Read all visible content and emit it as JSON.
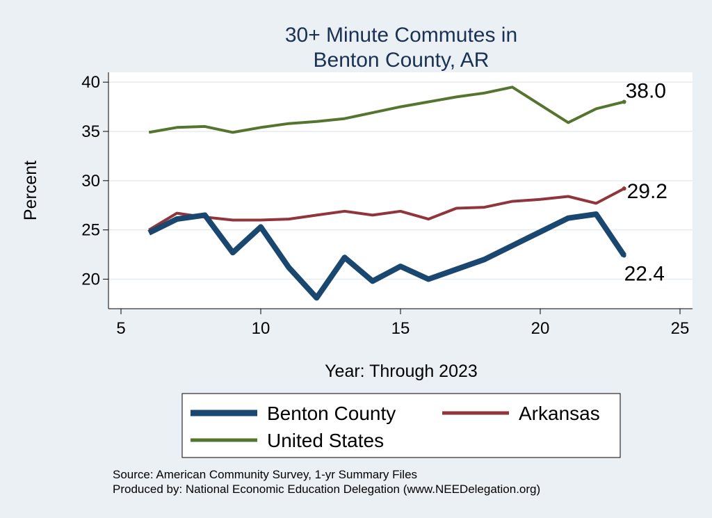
{
  "chart_data": {
    "type": "line",
    "title": [
      "30+ Minute Commutes in",
      "Benton County, AR"
    ],
    "xlabel": "Year: Through 2023",
    "ylabel": "Percent",
    "xlim": [
      5,
      25
    ],
    "ylim": [
      17,
      41
    ],
    "xticks": [
      5,
      10,
      15,
      20,
      25
    ],
    "yticks": [
      20,
      25,
      30,
      35,
      40
    ],
    "grid": true,
    "series": [
      {
        "name": "Benton County",
        "color": "#1a476f",
        "x": [
          6,
          7,
          8,
          9,
          10,
          11,
          12,
          13,
          14,
          15,
          16,
          17,
          18,
          19,
          20,
          21,
          22,
          23
        ],
        "values": [
          24.7,
          26.1,
          26.5,
          22.7,
          25.3,
          21.2,
          18.1,
          22.2,
          19.8,
          21.3,
          20.0,
          21.0,
          22.0,
          23.4,
          24.8,
          26.2,
          26.6,
          22.4
        ],
        "end_label": "22.4"
      },
      {
        "name": "Arkansas",
        "color": "#90353b",
        "x": [
          6,
          7,
          8,
          9,
          10,
          11,
          12,
          13,
          14,
          15,
          16,
          17,
          18,
          19,
          20,
          21,
          22,
          23
        ],
        "values": [
          25.0,
          26.7,
          26.3,
          26.0,
          26.0,
          26.1,
          26.5,
          26.9,
          26.5,
          26.9,
          26.1,
          27.2,
          27.3,
          27.9,
          28.1,
          28.4,
          27.7,
          29.2
        ],
        "end_label": "29.2"
      },
      {
        "name": "United States",
        "color": "#55752f",
        "x": [
          6,
          7,
          8,
          9,
          10,
          11,
          12,
          13,
          14,
          15,
          16,
          17,
          18,
          19,
          20,
          21,
          22,
          23
        ],
        "values": [
          34.9,
          35.4,
          35.5,
          34.9,
          35.4,
          35.8,
          36.0,
          36.3,
          36.9,
          37.5,
          38.0,
          38.5,
          38.9,
          39.5,
          37.7,
          35.9,
          37.3,
          38.0
        ],
        "end_label": "38.0"
      }
    ],
    "legend": {
      "position": "bottom",
      "entries": [
        "Benton County",
        "Arkansas",
        "United States"
      ]
    },
    "notes": [
      "Source: American Community Survey, 1-yr Summary Files",
      "Produced by: National Economic Education Delegation (www.NEEDelegation.org)"
    ]
  }
}
